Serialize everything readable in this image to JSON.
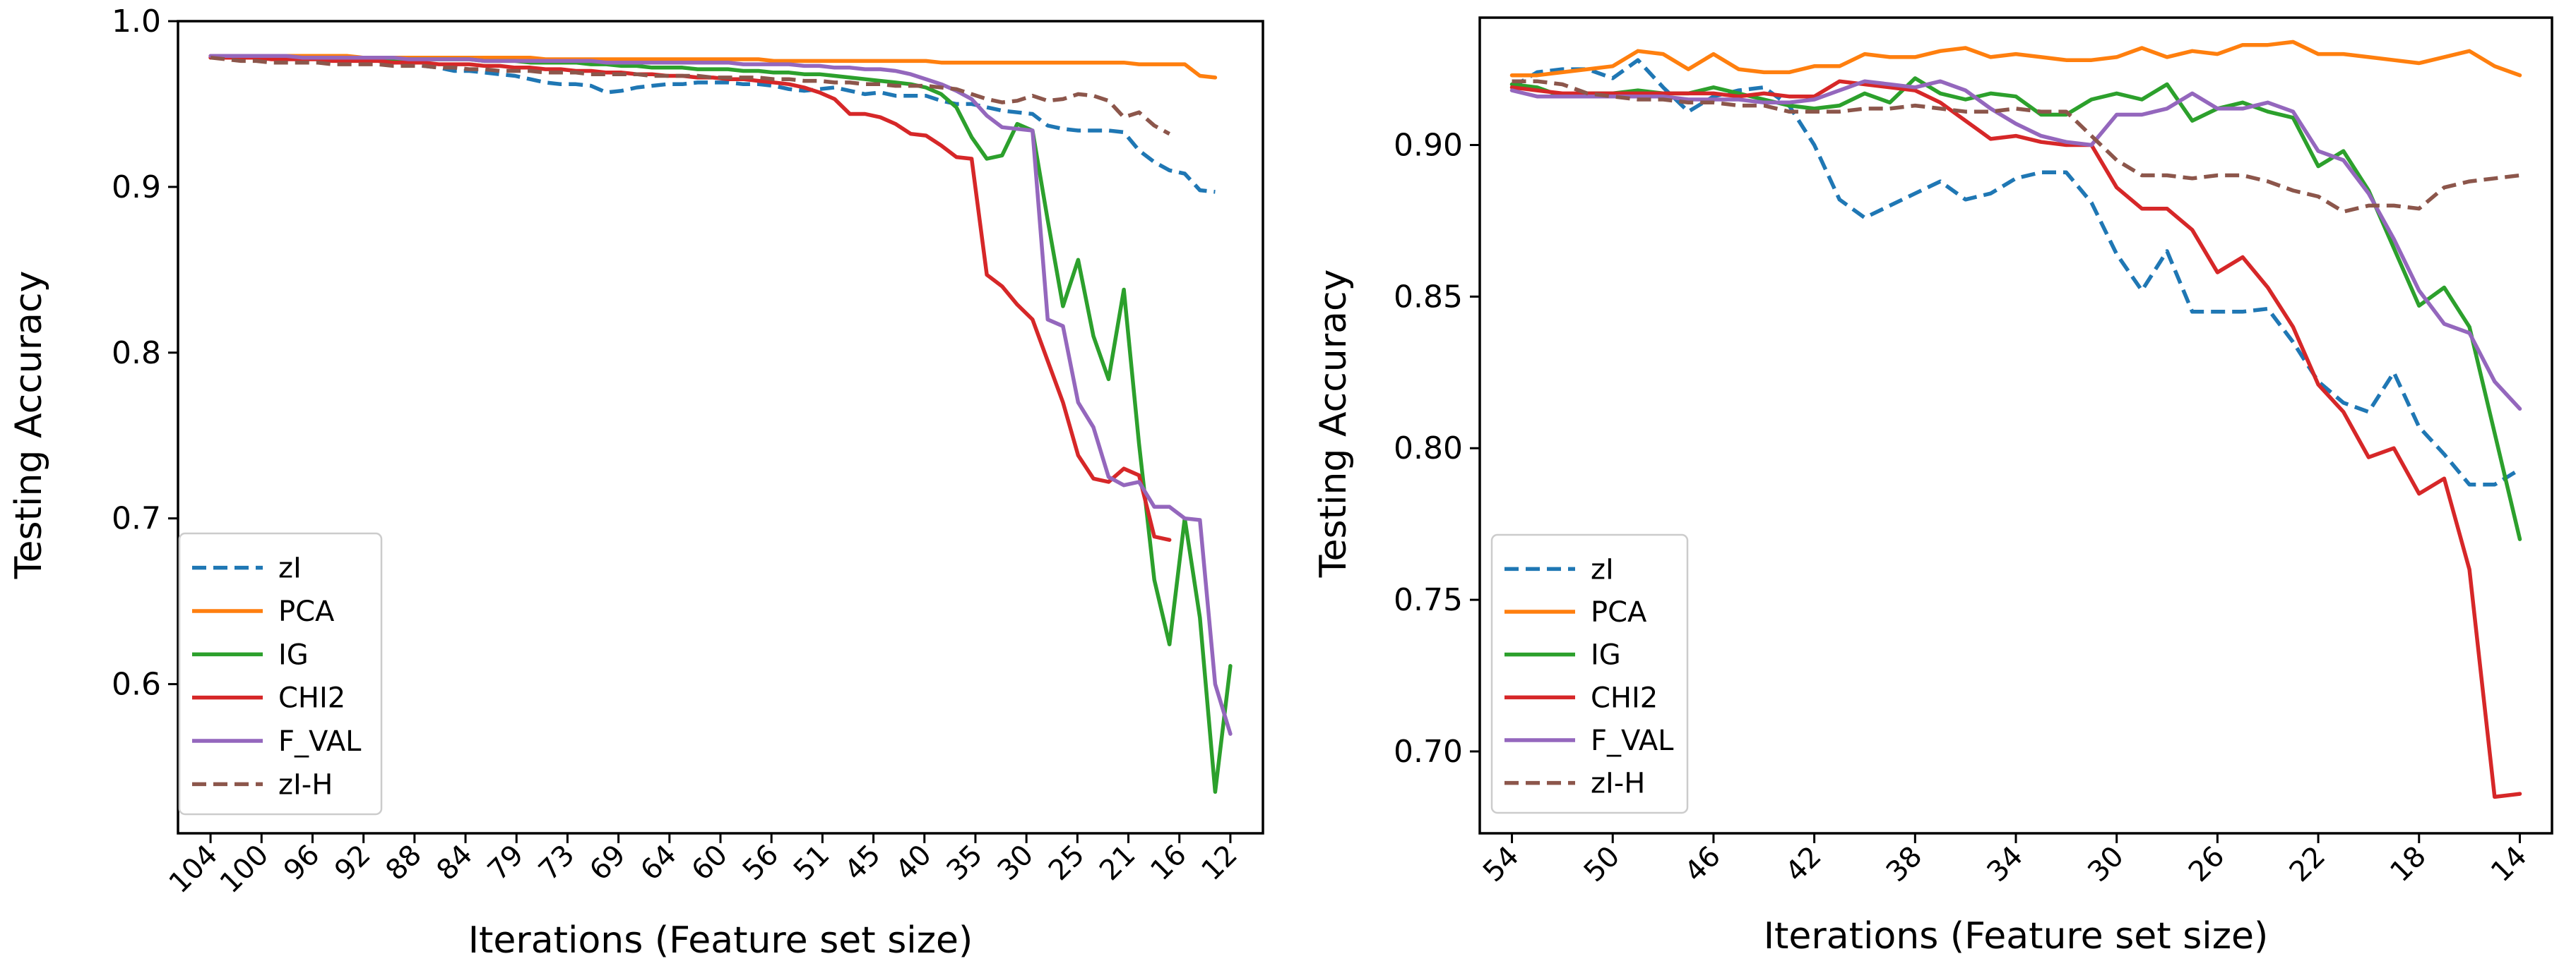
{
  "chart_data": [
    {
      "type": "line",
      "xlabel": "Iterations (Feature set size)",
      "ylabel": "Testing Accuracy",
      "ylim": [
        0.51,
        1.0
      ],
      "yticks": [
        "0.6",
        "0.7",
        "0.8",
        "0.9",
        "1.0"
      ],
      "ytick_values": [
        0.6,
        0.7,
        0.8,
        0.9,
        1.0
      ],
      "xticks": [
        "104",
        "100",
        "96",
        "92",
        "88",
        "84",
        "79",
        "73",
        "69",
        "64",
        "60",
        "56",
        "51",
        "45",
        "40",
        "35",
        "30",
        "25",
        "21",
        "16",
        "12"
      ],
      "legend_location": "lower left",
      "series": [
        {
          "name": "zI",
          "style": "dashed",
          "color": "#1f77b4",
          "values": [
            0.979,
            0.979,
            0.978,
            0.978,
            0.978,
            0.978,
            0.977,
            0.977,
            0.977,
            0.976,
            0.976,
            0.975,
            0.975,
            0.974,
            0.973,
            0.972,
            0.97,
            0.97,
            0.969,
            0.968,
            0.967,
            0.965,
            0.963,
            0.962,
            0.962,
            0.961,
            0.957,
            0.958,
            0.96,
            0.961,
            0.962,
            0.962,
            0.963,
            0.963,
            0.963,
            0.962,
            0.962,
            0.961,
            0.959,
            0.958,
            0.959,
            0.96,
            0.958,
            0.956,
            0.957,
            0.955,
            0.955,
            0.955,
            0.952,
            0.95,
            0.95,
            0.948,
            0.946,
            0.945,
            0.944,
            0.937,
            0.935,
            0.934,
            0.934,
            0.934,
            0.933,
            0.922,
            0.915,
            0.91,
            0.908,
            0.898,
            0.897
          ]
        },
        {
          "name": "PCA",
          "style": "solid",
          "color": "#ff7f0e",
          "values": [
            0.979,
            0.979,
            0.979,
            0.979,
            0.979,
            0.979,
            0.979,
            0.979,
            0.979,
            0.979,
            0.978,
            0.978,
            0.978,
            0.978,
            0.978,
            0.978,
            0.978,
            0.978,
            0.978,
            0.978,
            0.978,
            0.978,
            0.977,
            0.977,
            0.977,
            0.977,
            0.977,
            0.977,
            0.977,
            0.977,
            0.977,
            0.977,
            0.977,
            0.977,
            0.977,
            0.977,
            0.977,
            0.976,
            0.976,
            0.976,
            0.976,
            0.976,
            0.976,
            0.976,
            0.976,
            0.976,
            0.976,
            0.976,
            0.975,
            0.975,
            0.975,
            0.975,
            0.975,
            0.975,
            0.975,
            0.975,
            0.975,
            0.975,
            0.975,
            0.975,
            0.975,
            0.974,
            0.974,
            0.974,
            0.974,
            0.967,
            0.966
          ]
        },
        {
          "name": "IG",
          "style": "solid",
          "color": "#2ca02c",
          "values": [
            0.978,
            0.978,
            0.978,
            0.978,
            0.978,
            0.978,
            0.978,
            0.978,
            0.978,
            0.978,
            0.978,
            0.978,
            0.977,
            0.977,
            0.977,
            0.977,
            0.977,
            0.977,
            0.976,
            0.976,
            0.976,
            0.975,
            0.975,
            0.975,
            0.975,
            0.974,
            0.974,
            0.973,
            0.973,
            0.972,
            0.972,
            0.972,
            0.971,
            0.971,
            0.971,
            0.97,
            0.97,
            0.969,
            0.969,
            0.968,
            0.968,
            0.967,
            0.966,
            0.965,
            0.964,
            0.963,
            0.962,
            0.96,
            0.956,
            0.948,
            0.93,
            0.917,
            0.919,
            0.938,
            0.934,
            0.88,
            0.828,
            0.856,
            0.81,
            0.784,
            0.838,
            0.745,
            0.663,
            0.624,
            0.7,
            0.64,
            0.535,
            0.611
          ]
        },
        {
          "name": "CHI2",
          "style": "solid",
          "color": "#d62728",
          "values": [
            0.978,
            0.978,
            0.978,
            0.978,
            0.977,
            0.977,
            0.977,
            0.977,
            0.976,
            0.976,
            0.976,
            0.976,
            0.975,
            0.975,
            0.975,
            0.974,
            0.974,
            0.974,
            0.973,
            0.973,
            0.972,
            0.972,
            0.971,
            0.971,
            0.97,
            0.97,
            0.969,
            0.969,
            0.968,
            0.968,
            0.967,
            0.967,
            0.966,
            0.966,
            0.965,
            0.965,
            0.964,
            0.963,
            0.962,
            0.96,
            0.957,
            0.953,
            0.944,
            0.944,
            0.942,
            0.938,
            0.932,
            0.931,
            0.925,
            0.918,
            0.917,
            0.847,
            0.84,
            0.829,
            0.82,
            0.795,
            0.77,
            0.738,
            0.724,
            0.722,
            0.73,
            0.726,
            0.689,
            0.687
          ]
        },
        {
          "name": "F_VAL",
          "style": "solid",
          "color": "#9467bd",
          "values": [
            0.979,
            0.979,
            0.979,
            0.979,
            0.979,
            0.979,
            0.978,
            0.978,
            0.978,
            0.978,
            0.978,
            0.978,
            0.978,
            0.977,
            0.977,
            0.977,
            0.977,
            0.977,
            0.976,
            0.976,
            0.976,
            0.976,
            0.976,
            0.976,
            0.976,
            0.976,
            0.975,
            0.975,
            0.975,
            0.975,
            0.975,
            0.975,
            0.975,
            0.975,
            0.975,
            0.974,
            0.974,
            0.974,
            0.974,
            0.973,
            0.973,
            0.972,
            0.972,
            0.971,
            0.971,
            0.97,
            0.968,
            0.965,
            0.962,
            0.958,
            0.953,
            0.943,
            0.936,
            0.935,
            0.934,
            0.82,
            0.816,
            0.77,
            0.755,
            0.725,
            0.72,
            0.722,
            0.707,
            0.707,
            0.7,
            0.699,
            0.6,
            0.57
          ]
        },
        {
          "name": "zI-H",
          "style": "dashed",
          "color": "#8c564b",
          "values": [
            0.978,
            0.977,
            0.976,
            0.976,
            0.975,
            0.975,
            0.975,
            0.975,
            0.974,
            0.974,
            0.974,
            0.974,
            0.973,
            0.973,
            0.973,
            0.972,
            0.972,
            0.971,
            0.971,
            0.97,
            0.97,
            0.97,
            0.969,
            0.969,
            0.969,
            0.968,
            0.968,
            0.968,
            0.968,
            0.967,
            0.967,
            0.967,
            0.967,
            0.966,
            0.966,
            0.966,
            0.966,
            0.965,
            0.965,
            0.964,
            0.964,
            0.963,
            0.963,
            0.962,
            0.962,
            0.961,
            0.961,
            0.961,
            0.96,
            0.959,
            0.956,
            0.953,
            0.951,
            0.952,
            0.955,
            0.952,
            0.953,
            0.956,
            0.955,
            0.952,
            0.942,
            0.945,
            0.937,
            0.932
          ]
        }
      ]
    },
    {
      "type": "line",
      "xlabel": "Iterations (Feature set size)",
      "ylabel": "Testing Accuracy",
      "ylim": [
        0.673,
        0.942
      ],
      "yticks": [
        "0.70",
        "0.75",
        "0.80",
        "0.85",
        "0.90"
      ],
      "ytick_values": [
        0.7,
        0.75,
        0.8,
        0.85,
        0.9
      ],
      "xticks": [
        "54",
        "50",
        "46",
        "42",
        "38",
        "34",
        "30",
        "26",
        "22",
        "18",
        "14"
      ],
      "legend_location": "lower left",
      "series": [
        {
          "name": "zI",
          "style": "dashed",
          "color": "#1f77b4",
          "values": [
            0.919,
            0.924,
            0.925,
            0.925,
            0.922,
            0.928,
            0.919,
            0.911,
            0.916,
            0.918,
            0.919,
            0.913,
            0.9,
            0.882,
            0.876,
            0.88,
            0.884,
            0.888,
            0.882,
            0.884,
            0.889,
            0.891,
            0.891,
            0.881,
            0.864,
            0.852,
            0.865,
            0.845,
            0.845,
            0.845,
            0.846,
            0.835,
            0.822,
            0.815,
            0.812,
            0.825,
            0.807,
            0.798,
            0.788,
            0.788,
            0.793
          ]
        },
        {
          "name": "PCA",
          "style": "solid",
          "color": "#ff7f0e",
          "values": [
            0.923,
            0.923,
            0.924,
            0.925,
            0.926,
            0.931,
            0.93,
            0.925,
            0.93,
            0.925,
            0.924,
            0.924,
            0.926,
            0.926,
            0.93,
            0.929,
            0.929,
            0.931,
            0.932,
            0.929,
            0.93,
            0.929,
            0.928,
            0.928,
            0.929,
            0.932,
            0.929,
            0.931,
            0.93,
            0.933,
            0.933,
            0.934,
            0.93,
            0.93,
            0.929,
            0.928,
            0.927,
            0.929,
            0.931,
            0.926,
            0.923
          ]
        },
        {
          "name": "IG",
          "style": "solid",
          "color": "#2ca02c",
          "values": [
            0.92,
            0.919,
            0.916,
            0.917,
            0.917,
            0.918,
            0.917,
            0.917,
            0.919,
            0.917,
            0.915,
            0.913,
            0.912,
            0.913,
            0.917,
            0.914,
            0.922,
            0.917,
            0.915,
            0.917,
            0.916,
            0.91,
            0.91,
            0.915,
            0.917,
            0.915,
            0.92,
            0.908,
            0.912,
            0.914,
            0.911,
            0.909,
            0.893,
            0.898,
            0.885,
            0.866,
            0.847,
            0.853,
            0.84,
            0.805,
            0.77
          ]
        },
        {
          "name": "CHI2",
          "style": "solid",
          "color": "#d62728",
          "values": [
            0.919,
            0.918,
            0.917,
            0.917,
            0.917,
            0.917,
            0.917,
            0.917,
            0.917,
            0.916,
            0.917,
            0.916,
            0.916,
            0.921,
            0.92,
            0.919,
            0.918,
            0.914,
            0.908,
            0.902,
            0.903,
            0.901,
            0.9,
            0.9,
            0.886,
            0.879,
            0.879,
            0.872,
            0.858,
            0.863,
            0.853,
            0.84,
            0.821,
            0.812,
            0.797,
            0.8,
            0.785,
            0.79,
            0.76,
            0.685,
            0.686
          ]
        },
        {
          "name": "F_VAL",
          "style": "solid",
          "color": "#9467bd",
          "values": [
            0.918,
            0.916,
            0.916,
            0.916,
            0.916,
            0.916,
            0.916,
            0.915,
            0.915,
            0.915,
            0.914,
            0.914,
            0.915,
            0.918,
            0.921,
            0.92,
            0.919,
            0.921,
            0.918,
            0.912,
            0.907,
            0.903,
            0.901,
            0.9,
            0.91,
            0.91,
            0.912,
            0.917,
            0.912,
            0.912,
            0.914,
            0.911,
            0.898,
            0.895,
            0.884,
            0.869,
            0.852,
            0.841,
            0.838,
            0.822,
            0.813
          ]
        },
        {
          "name": "zI-H",
          "style": "dashed",
          "color": "#8c564b",
          "values": [
            0.921,
            0.921,
            0.92,
            0.917,
            0.916,
            0.915,
            0.915,
            0.914,
            0.914,
            0.913,
            0.913,
            0.911,
            0.911,
            0.911,
            0.912,
            0.912,
            0.913,
            0.912,
            0.911,
            0.911,
            0.912,
            0.911,
            0.911,
            0.903,
            0.895,
            0.89,
            0.89,
            0.889,
            0.89,
            0.89,
            0.888,
            0.885,
            0.883,
            0.878,
            0.88,
            0.88,
            0.879,
            0.886,
            0.888,
            0.889,
            0.89
          ]
        }
      ]
    }
  ]
}
